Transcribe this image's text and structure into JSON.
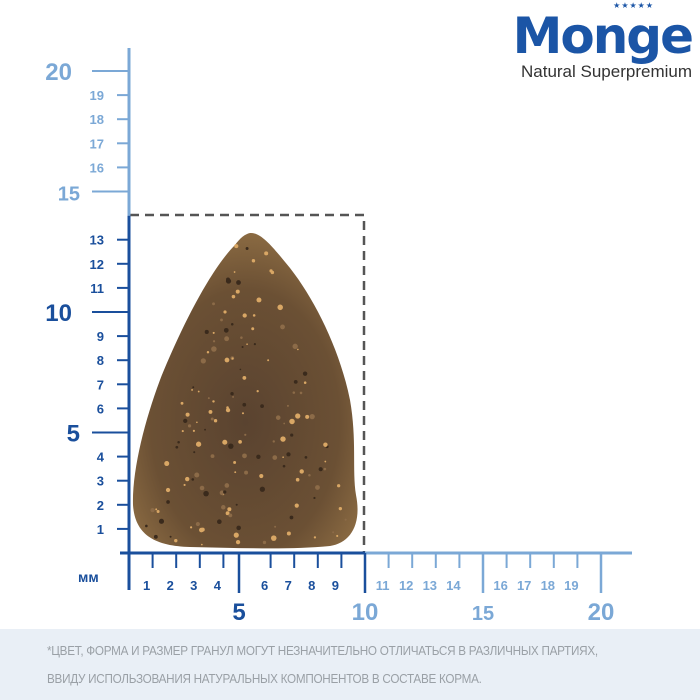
{
  "brand": {
    "name": "Monge",
    "tagline": "Natural Superpremium",
    "color": "#1b55a6"
  },
  "ruler": {
    "unit": "мм",
    "dark_color": "#1a4f9c",
    "light_color": "#7ba8d6",
    "vertical_minor": [
      "1",
      "2",
      "3",
      "4",
      "6",
      "7",
      "8",
      "9",
      "11",
      "12",
      "13",
      "16",
      "17",
      "18",
      "19"
    ],
    "vertical_major": [
      "5",
      "10",
      "15",
      "20"
    ],
    "horizontal_minor": [
      "1",
      "2",
      "3",
      "4",
      "6",
      "7",
      "8",
      "9",
      "11",
      "12",
      "13",
      "14",
      "16",
      "17",
      "18",
      "19"
    ],
    "horizontal_major": [
      "5",
      "10",
      "15",
      "20"
    ],
    "kibble_size_mm": {
      "width": 10,
      "height": 14
    }
  },
  "footer": {
    "line1": "*ЦВЕТ, ФОРМА И РАЗМЕР ГРАНУЛ МОГУТ НЕЗНАЧИТЕЛЬНО ОТЛИЧАТЬСЯ В РАЗЛИЧНЫХ ПАРТИЯХ,",
    "line2": "ВВИДУ ИСПОЛЬЗОВАНИЯ НАТУРАЛЬНЫХ КОМПОНЕНТОВ В СОСТАВЕ КОРМА."
  }
}
